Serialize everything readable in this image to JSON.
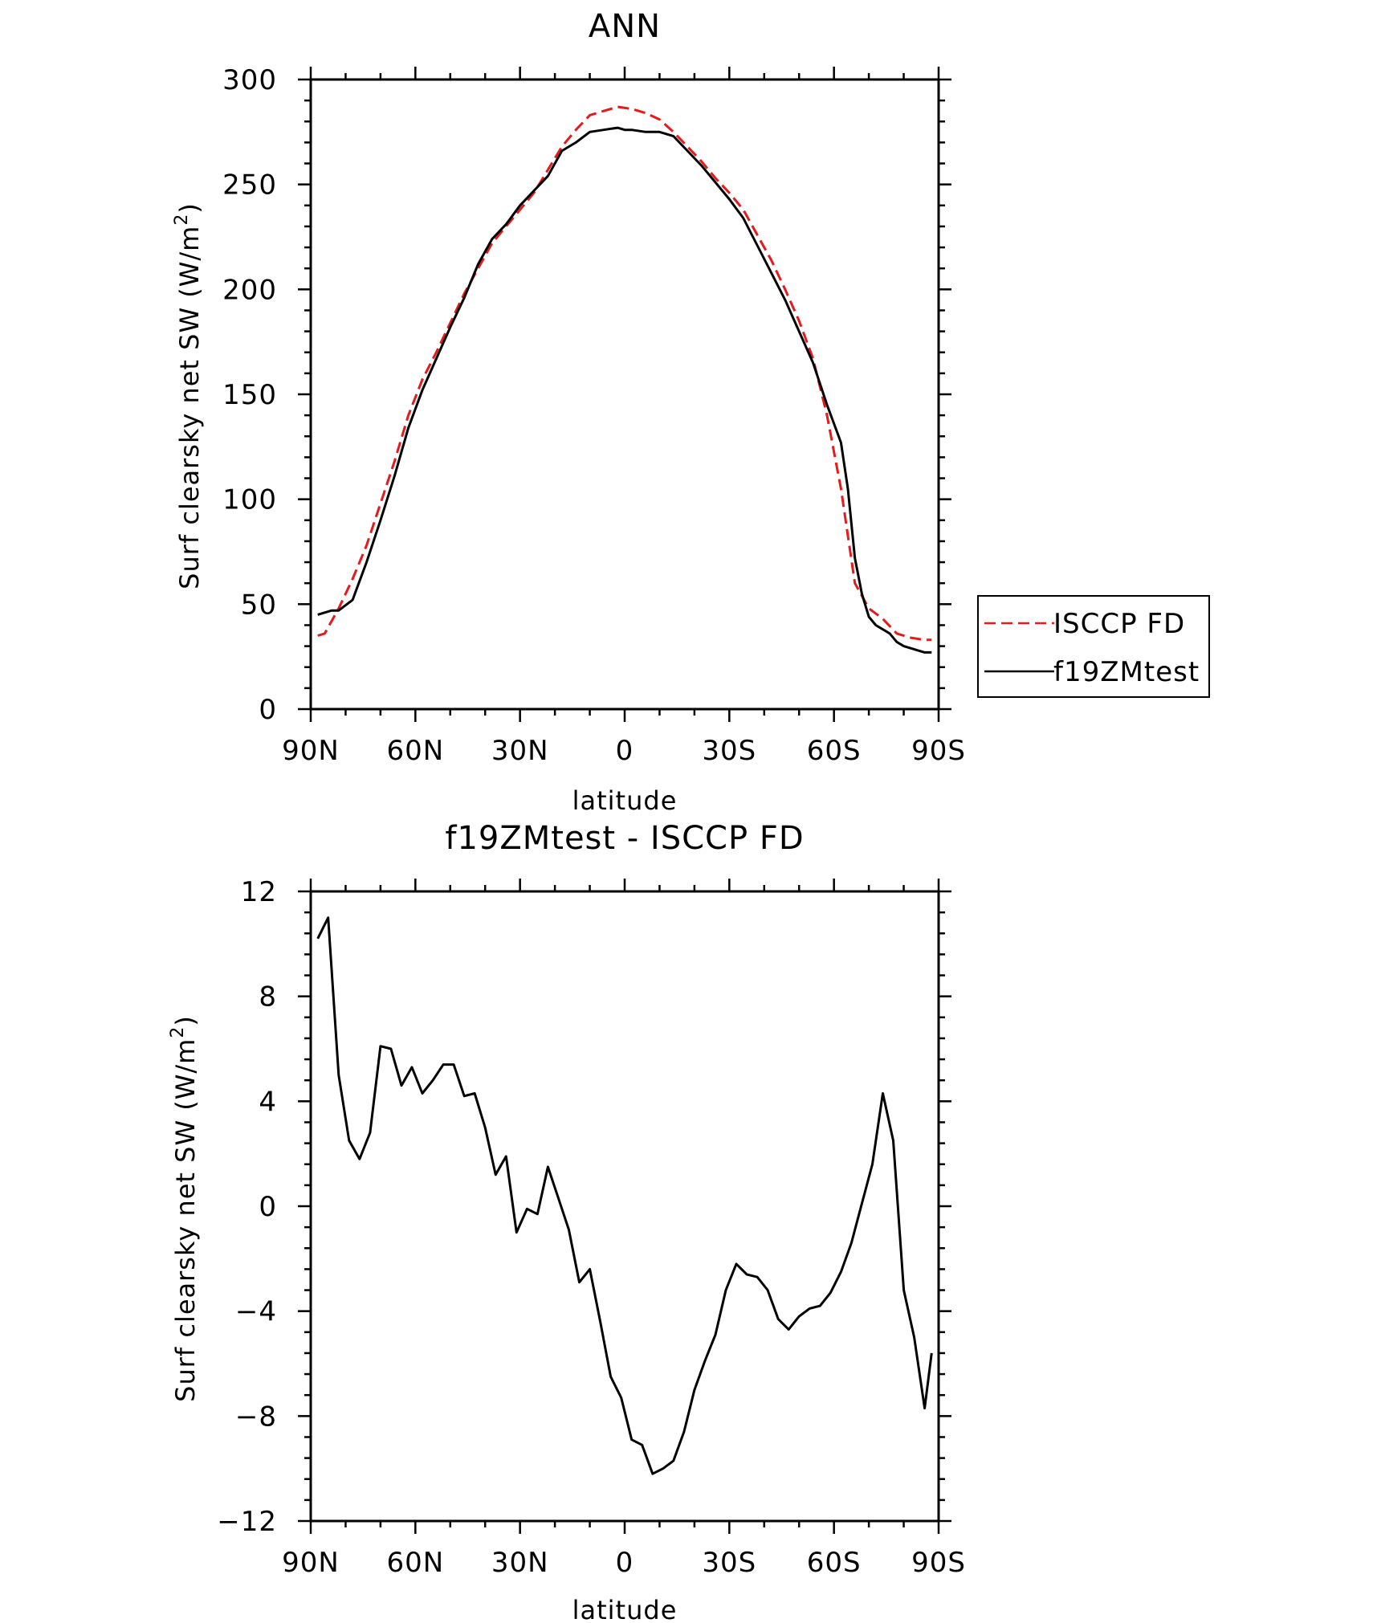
{
  "chart_data": [
    {
      "type": "line",
      "title": "ANN",
      "xlabel": "latitude",
      "ylabel_main": "Surf clearsky net SW (W/m",
      "ylabel_sup": "2",
      "ylabel_tail": ")",
      "xlim": [
        90,
        -90
      ],
      "ylim": [
        0,
        300
      ],
      "x_ticks": [
        90,
        60,
        30,
        0,
        -30,
        -60,
        -90
      ],
      "x_tick_labels": [
        "90N",
        "60N",
        "30N",
        "0",
        "30S",
        "60S",
        "90S"
      ],
      "y_ticks": [
        0,
        50,
        100,
        150,
        200,
        250,
        300
      ],
      "y_tick_labels": [
        "0",
        "50",
        "100",
        "150",
        "200",
        "250",
        "300"
      ],
      "legend_position": "right",
      "series": [
        {
          "name": "ISCCP FD",
          "color": "#e41a1c",
          "dash": "dashed",
          "x": [
            88,
            86,
            82,
            78,
            74,
            70,
            66,
            62,
            58,
            54,
            50,
            46,
            42,
            38,
            34,
            30,
            26,
            22,
            18,
            14,
            10,
            6,
            2,
            -2,
            -6,
            -10,
            -14,
            -18,
            -22,
            -26,
            -30,
            -34,
            -38,
            -42,
            -46,
            -50,
            -54,
            -58,
            -62,
            -66,
            -70,
            -74,
            -78,
            -82,
            -86,
            -88
          ],
          "y": [
            35,
            36,
            48,
            62,
            78,
            98,
            118,
            140,
            157,
            170,
            184,
            198,
            210,
            222,
            230,
            238,
            246,
            257,
            268,
            276,
            283,
            285,
            287,
            286,
            284,
            281,
            275,
            268,
            261,
            253,
            246,
            238,
            226,
            214,
            200,
            185,
            167,
            140,
            105,
            60,
            48,
            43,
            36,
            34,
            33,
            33
          ]
        },
        {
          "name": "f19ZMtest",
          "color": "#000000",
          "dash": "solid",
          "x": [
            88,
            86,
            84,
            82,
            78,
            74,
            70,
            66,
            62,
            58,
            54,
            50,
            46,
            42,
            38,
            34,
            30,
            26,
            22,
            18,
            14,
            10,
            6,
            2,
            0,
            -2,
            -6,
            -10,
            -14,
            -18,
            -22,
            -26,
            -30,
            -34,
            -38,
            -42,
            -46,
            -50,
            -54,
            -58,
            -62,
            -64,
            -66,
            -68,
            -70,
            -72,
            -74,
            -76,
            -78,
            -80,
            -82,
            -84,
            -86,
            -88
          ],
          "y": [
            45,
            46,
            47,
            47,
            52,
            70,
            90,
            111,
            134,
            152,
            167,
            182,
            196,
            212,
            224,
            231,
            240,
            247,
            254,
            266,
            270,
            275,
            276,
            277,
            276,
            276,
            275,
            275,
            273,
            266,
            259,
            251,
            243,
            234,
            221,
            208,
            195,
            180,
            165,
            145,
            127,
            105,
            72,
            55,
            44,
            40,
            38,
            36,
            32,
            30,
            29,
            28,
            27,
            27
          ]
        }
      ]
    },
    {
      "type": "line",
      "title": "f19ZMtest - ISCCP FD",
      "xlabel": "latitude",
      "ylabel_main": "Surf clearsky net SW (W/m",
      "ylabel_sup": "2",
      "ylabel_tail": ")",
      "xlim": [
        90,
        -90
      ],
      "ylim": [
        -12,
        12
      ],
      "x_ticks": [
        90,
        60,
        30,
        0,
        -30,
        -60,
        -90
      ],
      "x_tick_labels": [
        "90N",
        "60N",
        "30N",
        "0",
        "30S",
        "60S",
        "90S"
      ],
      "y_ticks": [
        -12,
        -8,
        -4,
        0,
        4,
        8,
        12
      ],
      "y_tick_labels": [
        "−12",
        "−8",
        "−4",
        "0",
        "4",
        "8",
        "12"
      ],
      "series": [
        {
          "color": "#000000",
          "dash": "solid",
          "x": [
            88,
            85,
            82,
            79,
            76,
            73,
            70,
            67,
            64,
            61,
            58,
            55,
            52,
            49,
            46,
            43,
            40,
            37,
            34,
            31,
            28,
            25,
            22,
            19,
            16,
            13,
            10,
            7,
            4,
            1,
            -2,
            -5,
            -8,
            -11,
            -14,
            -17,
            -20,
            -23,
            -26,
            -29,
            -32,
            -35,
            -38,
            -41,
            -44,
            -47,
            -50,
            -53,
            -56,
            -59,
            -62,
            -65,
            -68,
            -71,
            -74,
            -77,
            -80,
            -83,
            -86,
            -88
          ],
          "y": [
            10.2,
            11.0,
            5.0,
            2.5,
            1.8,
            2.8,
            6.1,
            6.0,
            4.6,
            5.3,
            4.3,
            4.8,
            5.4,
            5.4,
            4.2,
            4.3,
            3.0,
            1.2,
            1.9,
            -1.0,
            -0.1,
            -0.3,
            1.5,
            0.3,
            -0.9,
            -2.9,
            -2.4,
            -4.4,
            -6.5,
            -7.3,
            -8.9,
            -9.1,
            -10.2,
            -10.0,
            -9.7,
            -8.6,
            -7.0,
            -5.9,
            -4.9,
            -3.2,
            -2.2,
            -2.6,
            -2.7,
            -3.2,
            -4.3,
            -4.7,
            -4.2,
            -3.9,
            -3.8,
            -3.3,
            -2.5,
            -1.4,
            0.1,
            1.6,
            4.3,
            2.5,
            -3.2,
            -5.0,
            -7.7,
            -5.6
          ]
        }
      ]
    }
  ]
}
